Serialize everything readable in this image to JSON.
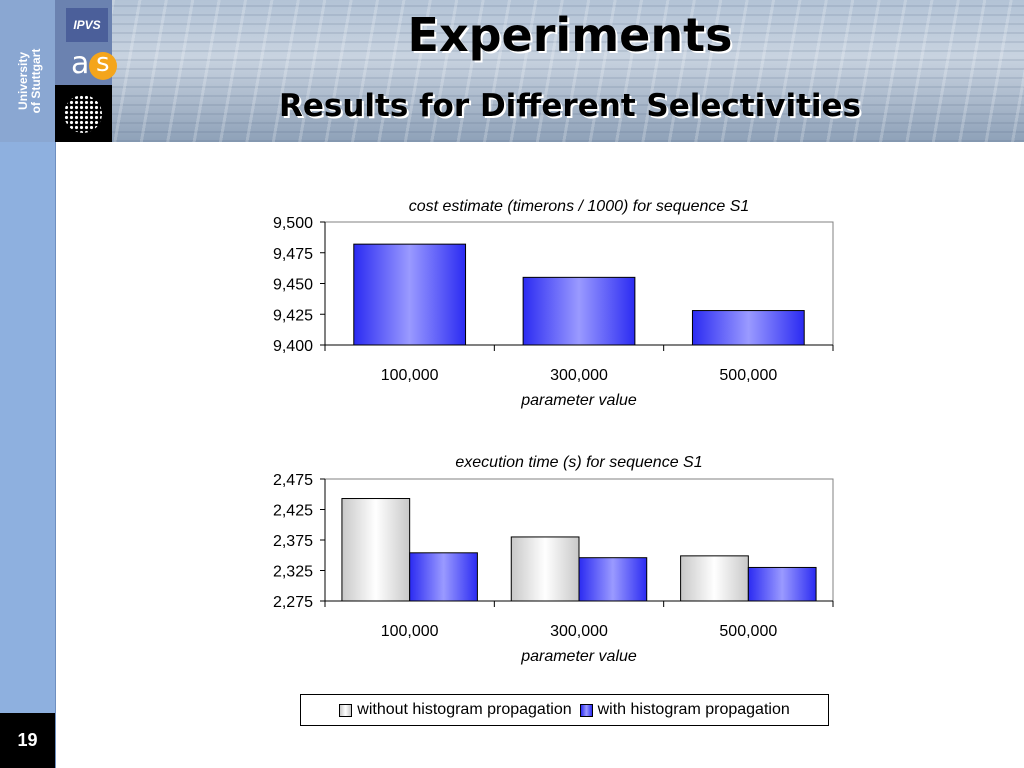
{
  "header": {
    "title": "Experiments",
    "subtitle": "Results for Different Selectivities",
    "university": "University\nof Stuttgart",
    "ipvs_logo": "IPVS",
    "as_logo_a": "a",
    "as_logo_s": "s"
  },
  "page_number": "19",
  "legend": {
    "without": "without histogram propagation",
    "with": "with histogram propagation"
  },
  "colors": {
    "without_fill": "#e8e8e8",
    "with_fill": "#3b3bff",
    "left_bar": "#8eb0df"
  },
  "chart_data": [
    {
      "type": "bar",
      "title": "cost estimate (timerons / 1000) for sequence S1",
      "xlabel": "parameter value",
      "ylabel": "",
      "categories": [
        "100,000",
        "300,000",
        "500,000"
      ],
      "series": [
        {
          "values": [
            9482,
            9455,
            9428
          ]
        }
      ],
      "ylim": [
        9400,
        9500
      ],
      "yticks": [
        "9,400",
        "9,425",
        "9,450",
        "9,475",
        "9,500"
      ],
      "grid": false
    },
    {
      "type": "bar",
      "title": "execution time (s) for sequence S1",
      "xlabel": "parameter value",
      "ylabel": "",
      "categories": [
        "100,000",
        "300,000",
        "500,000"
      ],
      "series": [
        {
          "name": "without histogram propagation",
          "values": [
            2.443,
            2.38,
            2.349
          ]
        },
        {
          "name": "with histogram propagation",
          "values": [
            2.354,
            2.346,
            2.33
          ]
        }
      ],
      "ylim": [
        2.275,
        2.475
      ],
      "yticks": [
        "2,275",
        "2,325",
        "2,375",
        "2,425",
        "2,475"
      ],
      "grid": false,
      "legend": "bottom"
    }
  ]
}
